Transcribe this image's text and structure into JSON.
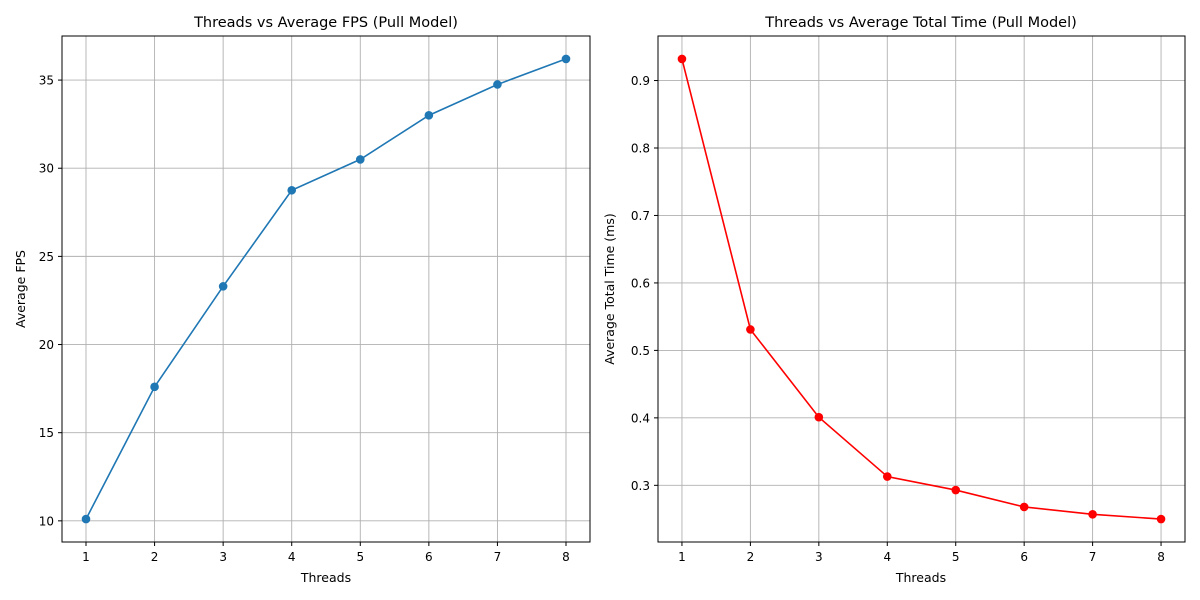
{
  "chart_data": [
    {
      "type": "line",
      "title": "Threads vs Average FPS (Pull Model)",
      "xlabel": "Threads",
      "ylabel": "Average FPS",
      "x": [
        1,
        2,
        3,
        4,
        5,
        6,
        7,
        8
      ],
      "series": [
        {
          "values": [
            10.1,
            17.6,
            23.3,
            28.75,
            30.5,
            33.0,
            34.75,
            36.2
          ],
          "color": "#1f77b4"
        }
      ],
      "xticks": [
        1,
        2,
        3,
        4,
        5,
        6,
        7,
        8
      ],
      "yticks": [
        10,
        15,
        20,
        25,
        30,
        35
      ],
      "xlim": [
        0.65,
        8.35
      ],
      "ylim": [
        8.8,
        37.5
      ],
      "grid": true,
      "marker": "circle"
    },
    {
      "type": "line",
      "title": "Threads vs Average Total Time (Pull Model)",
      "xlabel": "Threads",
      "ylabel": "Average Total Time (ms)",
      "x": [
        1,
        2,
        3,
        4,
        5,
        6,
        7,
        8
      ],
      "series": [
        {
          "values": [
            0.932,
            0.531,
            0.401,
            0.313,
            0.293,
            0.268,
            0.257,
            0.25
          ],
          "color": "#ff0000"
        }
      ],
      "xticks": [
        1,
        2,
        3,
        4,
        5,
        6,
        7,
        8
      ],
      "yticks": [
        0.3,
        0.4,
        0.5,
        0.6,
        0.7,
        0.8,
        0.9
      ],
      "xlim": [
        0.65,
        8.35
      ],
      "ylim": [
        0.216,
        0.966
      ],
      "grid": true,
      "marker": "circle"
    }
  ]
}
